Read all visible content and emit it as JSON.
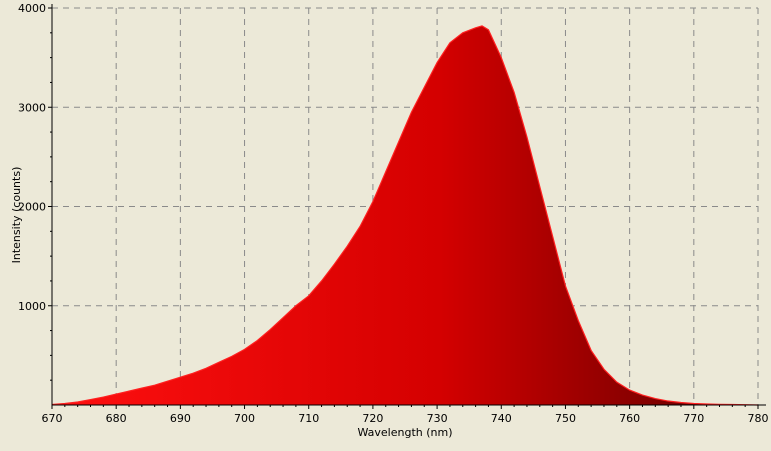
{
  "chart_data": {
    "type": "area",
    "title": "",
    "xlabel": "Wavelength (nm)",
    "ylabel": "Intensity (counts)",
    "xlim": [
      670,
      780
    ],
    "ylim": [
      0,
      4000
    ],
    "grid": true,
    "x_ticks": [
      670,
      680,
      690,
      700,
      710,
      720,
      730,
      740,
      750,
      760,
      770,
      780
    ],
    "y_ticks": [
      1000,
      2000,
      3000,
      4000
    ],
    "x_tick_labels": [
      "670",
      "680",
      "690",
      "700",
      "710",
      "720",
      "730",
      "740",
      "750",
      "760",
      "770",
      "780"
    ],
    "y_tick_labels": [
      "1000",
      "2000",
      "3000",
      "4000"
    ],
    "fill_gradient": [
      "#ff1010",
      "#d40000",
      "#5a0000"
    ],
    "line_color": "#ff2020",
    "background_color": "#ece9d8",
    "series": [
      {
        "x": [
          670,
          672,
          674,
          676,
          678,
          680,
          682,
          684,
          686,
          688,
          690,
          692,
          694,
          696,
          698,
          700,
          702,
          704,
          706,
          708,
          710,
          712,
          714,
          716,
          718,
          720,
          722,
          724,
          726,
          728,
          730,
          732,
          734,
          736,
          737,
          738,
          740,
          742,
          744,
          746,
          748,
          750,
          752,
          754,
          756,
          758,
          760,
          762,
          764,
          766,
          768,
          770,
          772,
          774,
          776,
          778,
          780
        ],
        "y": [
          5,
          15,
          30,
          55,
          80,
          110,
          140,
          170,
          200,
          240,
          280,
          320,
          370,
          430,
          490,
          560,
          650,
          760,
          880,
          1000,
          1100,
          1250,
          1420,
          1600,
          1800,
          2050,
          2350,
          2650,
          2950,
          3200,
          3450,
          3650,
          3750,
          3800,
          3820,
          3780,
          3500,
          3150,
          2700,
          2200,
          1700,
          1200,
          850,
          550,
          360,
          230,
          150,
          100,
          65,
          40,
          25,
          15,
          10,
          7,
          5,
          3,
          0
        ]
      }
    ]
  }
}
